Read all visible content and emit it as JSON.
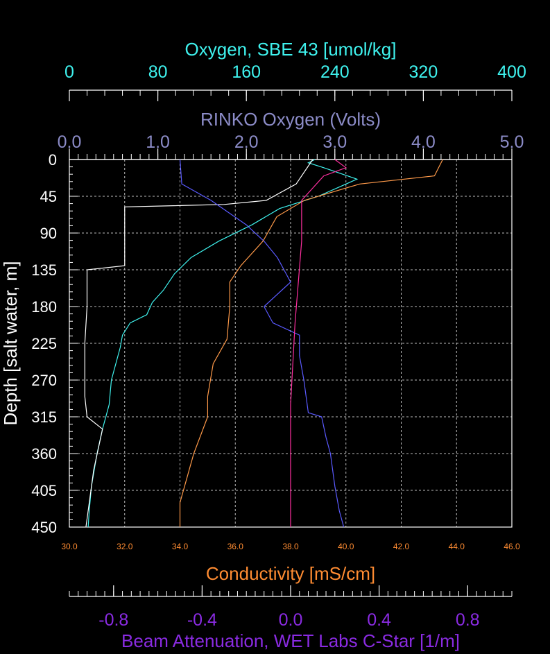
{
  "chart_data": {
    "type": "line",
    "colors": {
      "oxygen_sbe43": "#3ff2ee",
      "rinko": "#8c8cc8",
      "conductivity": "#ff8c32",
      "beam": "#8a2be2",
      "depth": "#ffffff",
      "temp_white": "#ffffff",
      "cond_orange": "#ff9a4a",
      "rinko_blue": "#5a5aff",
      "beam_magenta": "#ff2fa0"
    },
    "axes": {
      "oxygen": {
        "label": "Oxygen, SBE 43 [umol/kg]",
        "range": [
          0,
          400
        ],
        "ticks": [
          "0",
          "80",
          "160",
          "240",
          "320",
          "400"
        ]
      },
      "rinko": {
        "label": "RINKO Oxygen (Volts)",
        "range": [
          0,
          5
        ],
        "ticks": [
          "0.0",
          "1.0",
          "2.0",
          "3.0",
          "4.0",
          "5.0"
        ]
      },
      "conductivity": {
        "label": "Conductivity [mS/cm]",
        "range": [
          30,
          46
        ],
        "ticks": [
          "30.0",
          "32.0",
          "34.0",
          "36.0",
          "38.0",
          "40.0",
          "42.0",
          "44.0",
          "46.0"
        ]
      },
      "beam": {
        "label": "Beam Attenuation, WET Labs C-Star [1/m]",
        "range": [
          -1,
          1
        ],
        "ticks": [
          "-0.8",
          "-0.4",
          "0.0",
          "0.4",
          "0.8"
        ]
      },
      "depth": {
        "label": "Depth [salt water, m]",
        "range": [
          0,
          450
        ],
        "ticks": [
          "0",
          "45",
          "90",
          "135",
          "180",
          "225",
          "270",
          "315",
          "360",
          "405",
          "450"
        ]
      }
    },
    "grid": true,
    "series": [
      {
        "key": "oxygen_sbe43",
        "axis": "oxygen",
        "points": [
          [
            222,
            0
          ],
          [
            216,
            4
          ],
          [
            230,
            10
          ],
          [
            260,
            24
          ],
          [
            245,
            33
          ],
          [
            225,
            45
          ],
          [
            190,
            60
          ],
          [
            165,
            80
          ],
          [
            135,
            100
          ],
          [
            110,
            120
          ],
          [
            95,
            140
          ],
          [
            85,
            160
          ],
          [
            75,
            175
          ],
          [
            70,
            190
          ],
          [
            55,
            200
          ],
          [
            48,
            215
          ],
          [
            46,
            230
          ],
          [
            42,
            250
          ],
          [
            38,
            270
          ],
          [
            36,
            300
          ],
          [
            30,
            330
          ],
          [
            25,
            360
          ],
          [
            20,
            400
          ],
          [
            18,
            430
          ],
          [
            17,
            450
          ]
        ]
      },
      {
        "key": "temp_white",
        "axis": "oxygen",
        "points": [
          [
            220,
            0
          ],
          [
            205,
            30
          ],
          [
            178,
            50
          ],
          [
            140,
            55
          ],
          [
            50,
            58
          ],
          [
            50,
            100
          ],
          [
            50,
            130
          ],
          [
            16,
            135
          ],
          [
            16,
            180
          ],
          [
            14,
            225
          ],
          [
            14,
            290
          ],
          [
            16,
            315
          ],
          [
            30,
            330
          ],
          [
            22,
            380
          ],
          [
            18,
            420
          ],
          [
            15,
            450
          ]
        ]
      },
      {
        "key": "rinko_blue",
        "axis": "rinko",
        "points": [
          [
            1.25,
            0
          ],
          [
            1.27,
            30
          ],
          [
            1.6,
            50
          ],
          [
            2.0,
            80
          ],
          [
            2.2,
            100
          ],
          [
            2.35,
            120
          ],
          [
            2.45,
            140
          ],
          [
            2.5,
            150
          ],
          [
            2.2,
            180
          ],
          [
            2.3,
            200
          ],
          [
            2.6,
            215
          ],
          [
            2.6,
            240
          ],
          [
            2.65,
            270
          ],
          [
            2.7,
            310
          ],
          [
            2.85,
            315
          ],
          [
            2.9,
            340
          ],
          [
            2.95,
            360
          ],
          [
            3.0,
            400
          ],
          [
            3.05,
            430
          ],
          [
            3.1,
            450
          ]
        ]
      },
      {
        "key": "cond_orange",
        "axis": "conductivity",
        "points": [
          [
            43.5,
            0
          ],
          [
            43.2,
            20
          ],
          [
            40.5,
            30
          ],
          [
            38.5,
            50
          ],
          [
            37.5,
            70
          ],
          [
            37.0,
            100
          ],
          [
            36.2,
            130
          ],
          [
            35.8,
            150
          ],
          [
            35.8,
            180
          ],
          [
            35.7,
            220
          ],
          [
            35.2,
            250
          ],
          [
            35.0,
            290
          ],
          [
            35.0,
            315
          ],
          [
            34.5,
            360
          ],
          [
            34.0,
            420
          ],
          [
            34.0,
            450
          ]
        ]
      },
      {
        "key": "beam_magenta",
        "axis": "beam",
        "points": [
          [
            0.2,
            0
          ],
          [
            0.25,
            10
          ],
          [
            0.15,
            20
          ],
          [
            0.05,
            50
          ],
          [
            0.05,
            100
          ],
          [
            0.02,
            200
          ],
          [
            0.0,
            300
          ],
          [
            0.0,
            400
          ],
          [
            0.0,
            450
          ]
        ]
      }
    ]
  }
}
